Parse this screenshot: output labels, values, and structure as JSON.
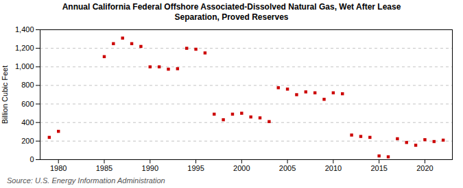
{
  "chart_data": {
    "type": "scatter",
    "title": "Annual California Federal Offshore Associated-Dissolved Natural Gas, Wet After Lease\nSeparation, Proved Reserves",
    "ylabel": "Billion Cubic Feet",
    "source": "Source: U.S. Energy Information Administration",
    "x": [
      1979,
      1980,
      1985,
      1986,
      1987,
      1988,
      1989,
      1990,
      1991,
      1992,
      1993,
      1994,
      1995,
      1996,
      1997,
      1998,
      1999,
      2000,
      2001,
      2002,
      2003,
      2004,
      2005,
      2006,
      2007,
      2008,
      2009,
      2010,
      2011,
      2012,
      2013,
      2014,
      2015,
      2016,
      2017,
      2018,
      2019,
      2020,
      2021,
      2022
    ],
    "values": [
      240,
      305,
      1110,
      1250,
      1310,
      1250,
      1220,
      1000,
      1000,
      975,
      980,
      1200,
      1190,
      1150,
      490,
      430,
      490,
      500,
      460,
      450,
      410,
      775,
      760,
      700,
      730,
      720,
      650,
      720,
      710,
      265,
      250,
      240,
      40,
      30,
      225,
      185,
      155,
      215,
      195,
      210
    ],
    "color": "#cc0000",
    "marker": "square",
    "grid": "y",
    "xlim": [
      1978,
      2023
    ],
    "ylim": [
      0,
      1400
    ],
    "xticks": [
      1980,
      1985,
      1990,
      1995,
      2000,
      2005,
      2010,
      2015,
      2020
    ],
    "yticks": [
      0,
      200,
      400,
      600,
      800,
      {
        "value": 1000,
        "label": "1,000"
      },
      {
        "value": 1200,
        "label": "1,200"
      },
      {
        "value": 1400,
        "label": "1,400"
      }
    ]
  }
}
